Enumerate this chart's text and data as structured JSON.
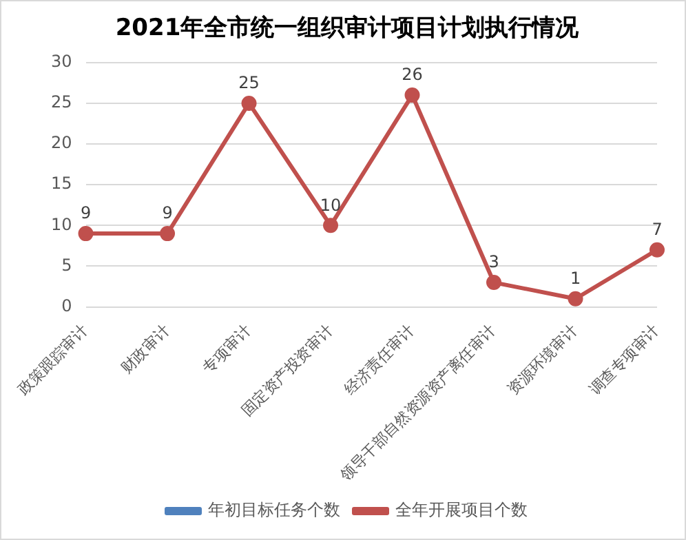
{
  "chart_data": {
    "type": "line",
    "title": "2021年全市统一组织审计项目计划执行情况",
    "categories": [
      "政策跟踪审计",
      "财政审计",
      "专项审计",
      "固定资产投资审计",
      "经济责任审计",
      "领导干部自然资源资产离任审计",
      "资源环境审计",
      "调查专项审计"
    ],
    "series": [
      {
        "name": "年初目标任务个数",
        "color": "#4f81bd",
        "values": [
          null,
          null,
          null,
          null,
          null,
          null,
          null,
          null
        ]
      },
      {
        "name": "全年开展项目个数",
        "color": "#c0504d",
        "values": [
          9,
          9,
          25,
          10,
          26,
          3,
          1,
          7
        ]
      }
    ],
    "ylim": [
      0,
      30
    ],
    "yticks": [
      0,
      5,
      10,
      15,
      20,
      25,
      30
    ],
    "grid": "y",
    "legend": "bottom",
    "marker": "circle",
    "line_style": "solid",
    "data_labels": true
  }
}
